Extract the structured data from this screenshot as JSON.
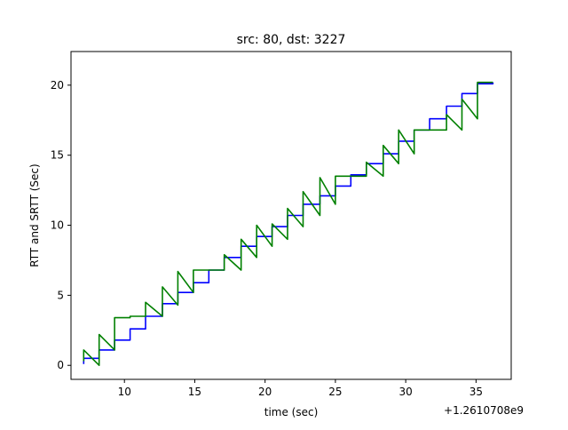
{
  "chart_data": {
    "type": "line",
    "title": "src: 80, dst: 3227",
    "xlabel": "time (sec)",
    "ylabel": "RTT and SRTT (Sec)",
    "x_offset_label": "+1.2610708e9",
    "xlim": [
      6.2,
      37.5
    ],
    "ylim": [
      -1.0,
      22.4
    ],
    "x_ticks": [
      10,
      15,
      20,
      25,
      30,
      35
    ],
    "x_tick_labels": [
      "10",
      "15",
      "20",
      "25",
      "30",
      "35"
    ],
    "y_ticks": [
      0,
      5,
      10,
      15,
      20
    ],
    "y_tick_labels": [
      "0",
      "5",
      "10",
      "15",
      "20"
    ],
    "grid": false,
    "series": [
      {
        "color": "#0000ff",
        "x": [
          7.1,
          7.1,
          8.2,
          8.2,
          9.3,
          9.3,
          10.4,
          10.4,
          11.5,
          11.5,
          12.7,
          12.7,
          13.8,
          13.8,
          14.9,
          14.9,
          16.0,
          16.0,
          17.1,
          17.1,
          18.3,
          18.3,
          19.4,
          19.4,
          20.5,
          20.5,
          21.6,
          21.6,
          22.7,
          22.7,
          23.9,
          23.9,
          25.0,
          25.0,
          26.1,
          26.1,
          27.2,
          27.2,
          28.4,
          28.4,
          29.5,
          29.5,
          30.6,
          30.6,
          31.7,
          31.7,
          32.9,
          32.9,
          34.0,
          34.0,
          35.1,
          35.1,
          36.2,
          36.2
        ],
        "y": [
          0.1,
          0.5,
          0.5,
          1.1,
          1.1,
          1.8,
          1.8,
          2.6,
          2.6,
          3.5,
          3.5,
          4.4,
          4.4,
          5.2,
          5.2,
          5.9,
          5.9,
          6.8,
          6.8,
          7.7,
          7.7,
          8.5,
          8.5,
          9.2,
          9.2,
          9.9,
          9.9,
          10.7,
          10.7,
          11.5,
          11.5,
          12.1,
          12.1,
          12.8,
          12.8,
          13.6,
          13.6,
          14.4,
          14.4,
          15.1,
          15.1,
          16.0,
          16.0,
          16.8,
          16.8,
          17.6,
          17.6,
          18.5,
          18.5,
          19.4,
          19.4,
          20.1,
          20.1,
          20.2
        ]
      },
      {
        "color": "#008000",
        "x": [
          7.1,
          7.1,
          8.2,
          8.2,
          9.3,
          9.3,
          10.4,
          10.4,
          11.5,
          11.5,
          12.7,
          12.7,
          13.8,
          13.8,
          14.9,
          14.9,
          16.0,
          16.0,
          17.1,
          17.1,
          18.3,
          18.3,
          19.4,
          19.4,
          20.5,
          20.5,
          21.6,
          21.6,
          22.7,
          22.7,
          23.9,
          23.9,
          25.0,
          25.0,
          26.1,
          26.1,
          27.2,
          27.2,
          28.4,
          28.4,
          29.5,
          29.5,
          30.6,
          30.6,
          31.7,
          31.7,
          32.9,
          32.9,
          34.0,
          34.0,
          35.1,
          35.1,
          36.2,
          36.2
        ],
        "y": [
          0.3,
          1.1,
          0.0,
          2.2,
          1.1,
          3.4,
          3.4,
          3.5,
          3.5,
          4.5,
          3.5,
          5.6,
          4.3,
          6.7,
          5.2,
          6.8,
          6.8,
          6.8,
          6.8,
          7.9,
          6.8,
          9.0,
          7.7,
          10.0,
          8.5,
          10.1,
          9.0,
          11.2,
          9.9,
          12.4,
          10.7,
          13.4,
          11.5,
          13.5,
          13.5,
          13.5,
          13.5,
          14.5,
          13.5,
          15.7,
          14.4,
          16.8,
          15.1,
          16.8,
          16.8,
          16.8,
          16.8,
          17.9,
          16.8,
          19.0,
          17.6,
          20.2,
          20.2,
          20.2
        ]
      }
    ]
  }
}
